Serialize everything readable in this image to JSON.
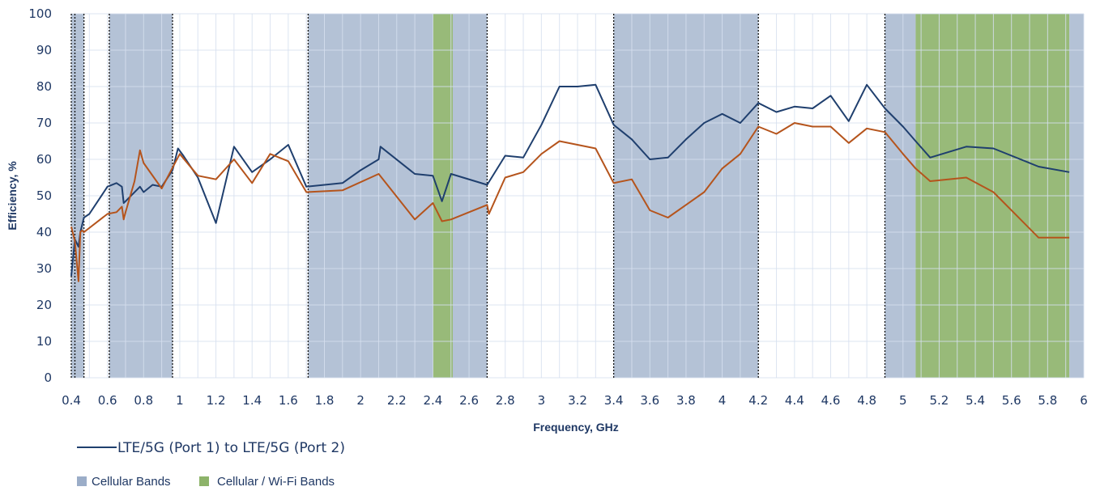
{
  "chart_data": {
    "type": "line",
    "xlabel": "Frequency, GHz",
    "ylabel": "Efficiency, %",
    "xlim": [
      0.4,
      6.0
    ],
    "ylim": [
      0,
      100
    ],
    "x_ticks": [
      "0.4",
      "0.6",
      "0.8",
      "1",
      "1.2",
      "1.4",
      "1.6",
      "1.8",
      "2",
      "2.2",
      "2.4",
      "2.6",
      "2.8",
      "3",
      "3.2",
      "3.4",
      "3.6",
      "3.8",
      "4",
      "4.2",
      "4.4",
      "4.6",
      "4.8",
      "5",
      "5.2",
      "5.4",
      "5.6",
      "5.8",
      "6"
    ],
    "y_ticks": [
      "0",
      "10",
      "20",
      "30",
      "40",
      "50",
      "60",
      "70",
      "80",
      "90",
      "100"
    ],
    "grid": true,
    "colors": {
      "series1": "#1f3f6e",
      "series2": "#b5541c",
      "cellular_band": "#9badc8",
      "wifi_band": "#8db36a",
      "grid": "#d6dfee",
      "text": "#1f3864"
    },
    "bands": [
      {
        "type": "cellular",
        "start": 0.4,
        "end": 0.47
      },
      {
        "type": "cellular",
        "start": 0.61,
        "end": 0.96
      },
      {
        "type": "cellular",
        "start": 1.71,
        "end": 2.4
      },
      {
        "type": "wifi",
        "start": 2.4,
        "end": 2.51
      },
      {
        "type": "cellular",
        "start": 2.51,
        "end": 2.7
      },
      {
        "type": "cellular",
        "start": 3.4,
        "end": 4.2
      },
      {
        "type": "cellular",
        "start": 4.9,
        "end": 5.07
      },
      {
        "type": "wifi",
        "start": 5.07,
        "end": 5.92
      },
      {
        "type": "cellular",
        "start": 5.92,
        "end": 6.0
      }
    ],
    "band_boundaries": [
      0.4,
      0.42,
      0.47,
      0.61,
      0.96,
      1.71,
      2.7,
      3.4,
      4.2,
      4.9
    ],
    "series": [
      {
        "name": "LTE/5G (Port 1) to LTE/5G (Port 2)",
        "x": [
          0.4,
          0.42,
          0.44,
          0.45,
          0.46,
          0.47,
          0.5,
          0.6,
          0.65,
          0.68,
          0.69,
          0.7,
          0.78,
          0.8,
          0.85,
          0.9,
          0.96,
          0.99,
          1.02,
          1.1,
          1.2,
          1.3,
          1.4,
          1.5,
          1.6,
          1.7,
          1.9,
          2.0,
          2.1,
          2.11,
          2.3,
          2.4,
          2.45,
          2.5,
          2.7,
          2.8,
          2.9,
          3.0,
          3.1,
          3.2,
          3.3,
          3.4,
          3.5,
          3.6,
          3.7,
          3.8,
          3.9,
          4.0,
          4.1,
          4.2,
          4.3,
          4.4,
          4.5,
          4.6,
          4.7,
          4.8,
          4.9,
          5.0,
          5.07,
          5.15,
          5.35,
          5.5,
          5.75,
          5.92
        ],
        "y": [
          28,
          38,
          36,
          40,
          42,
          44,
          45,
          52.5,
          53.5,
          52.5,
          48,
          48.5,
          52.5,
          51,
          53,
          52.5,
          57,
          63,
          61,
          55,
          42.5,
          63.5,
          56.5,
          60,
          64,
          52.5,
          53.5,
          57,
          60,
          63.5,
          56,
          55.5,
          48.5,
          56,
          53,
          61,
          60.5,
          69.5,
          80,
          80,
          80.5,
          69.5,
          65.5,
          60,
          60.5,
          65.5,
          70,
          72.5,
          70,
          75.5,
          73,
          74.5,
          74,
          77.5,
          70.5,
          80.5,
          74,
          69,
          65,
          60.5,
          63.5,
          63,
          58,
          56.5
        ]
      },
      {
        "name": "",
        "x": [
          0.4,
          0.42,
          0.44,
          0.45,
          0.46,
          0.47,
          0.6,
          0.65,
          0.68,
          0.69,
          0.7,
          0.75,
          0.78,
          0.8,
          0.9,
          1.0,
          1.1,
          1.2,
          1.3,
          1.4,
          1.5,
          1.6,
          1.7,
          1.9,
          2.1,
          2.3,
          2.4,
          2.45,
          2.5,
          2.7,
          2.71,
          2.8,
          2.9,
          3.0,
          3.1,
          3.2,
          3.3,
          3.4,
          3.5,
          3.6,
          3.7,
          3.8,
          3.9,
          4.0,
          4.1,
          4.2,
          4.3,
          4.4,
          4.5,
          4.6,
          4.7,
          4.8,
          4.9,
          5.0,
          5.07,
          5.15,
          5.35,
          5.5,
          5.75,
          5.92
        ],
        "y": [
          41.5,
          37.5,
          26.5,
          40,
          40.5,
          40,
          45,
          45.5,
          47,
          43.5,
          45.5,
          54,
          62.5,
          59,
          52,
          61.5,
          55.5,
          54.5,
          60,
          53.5,
          61.5,
          59.5,
          51,
          51.5,
          56,
          43.5,
          48,
          43,
          43.5,
          47.5,
          45,
          55,
          56.5,
          61.5,
          65,
          64,
          63,
          53.5,
          54.5,
          46,
          44,
          47.5,
          51,
          57.5,
          61.5,
          69,
          67,
          70,
          69,
          69,
          64.5,
          68.5,
          67.5,
          61.5,
          57.5,
          54,
          55,
          51,
          38.5,
          38.5
        ]
      }
    ],
    "legend": {
      "series_label": "LTE/5G (Port 1) to LTE/5G (Port 2)",
      "bands": [
        {
          "label": "Cellular Bands"
        },
        {
          "label": "Cellular / Wi-Fi Bands"
        }
      ]
    }
  }
}
